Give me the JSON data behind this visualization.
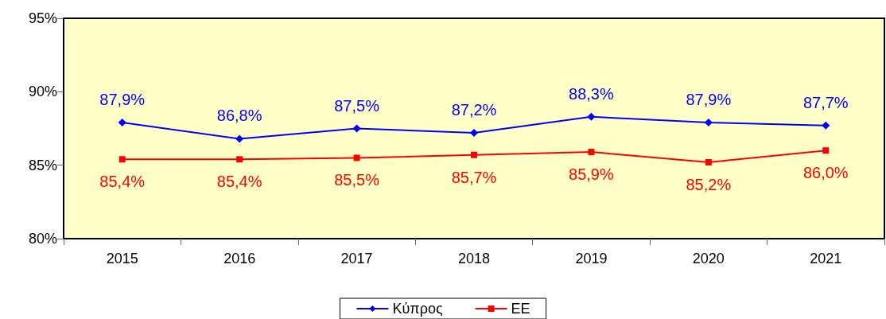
{
  "chart_data": {
    "type": "line",
    "categories": [
      "2015",
      "2016",
      "2017",
      "2018",
      "2019",
      "2020",
      "2021"
    ],
    "series": [
      {
        "name": "Κύπρος",
        "color": "#0000ff",
        "marker": "diamond",
        "values": [
          87.9,
          86.8,
          87.5,
          87.2,
          88.3,
          87.9,
          87.7
        ],
        "value_labels": [
          "87,9%",
          "86,8%",
          "87,5%",
          "87,2%",
          "88,3%",
          "87,9%",
          "87,7%"
        ]
      },
      {
        "name": "ΕΕ",
        "color": "#ff0000",
        "marker": "square",
        "values": [
          85.4,
          85.4,
          85.5,
          85.7,
          85.9,
          85.2,
          86.0
        ],
        "value_labels": [
          "85,4%",
          "85,4%",
          "85,5%",
          "85,7%",
          "85,9%",
          "85,2%",
          "86,0%"
        ]
      }
    ],
    "ylim": [
      80,
      95
    ],
    "yticks": [
      {
        "value": 80,
        "label": "80%"
      },
      {
        "value": 85,
        "label": "85%"
      },
      {
        "value": 90,
        "label": "90%"
      },
      {
        "value": 95,
        "label": "95%"
      }
    ],
    "grid": false,
    "legend": "bottom",
    "line_style": "solid"
  }
}
